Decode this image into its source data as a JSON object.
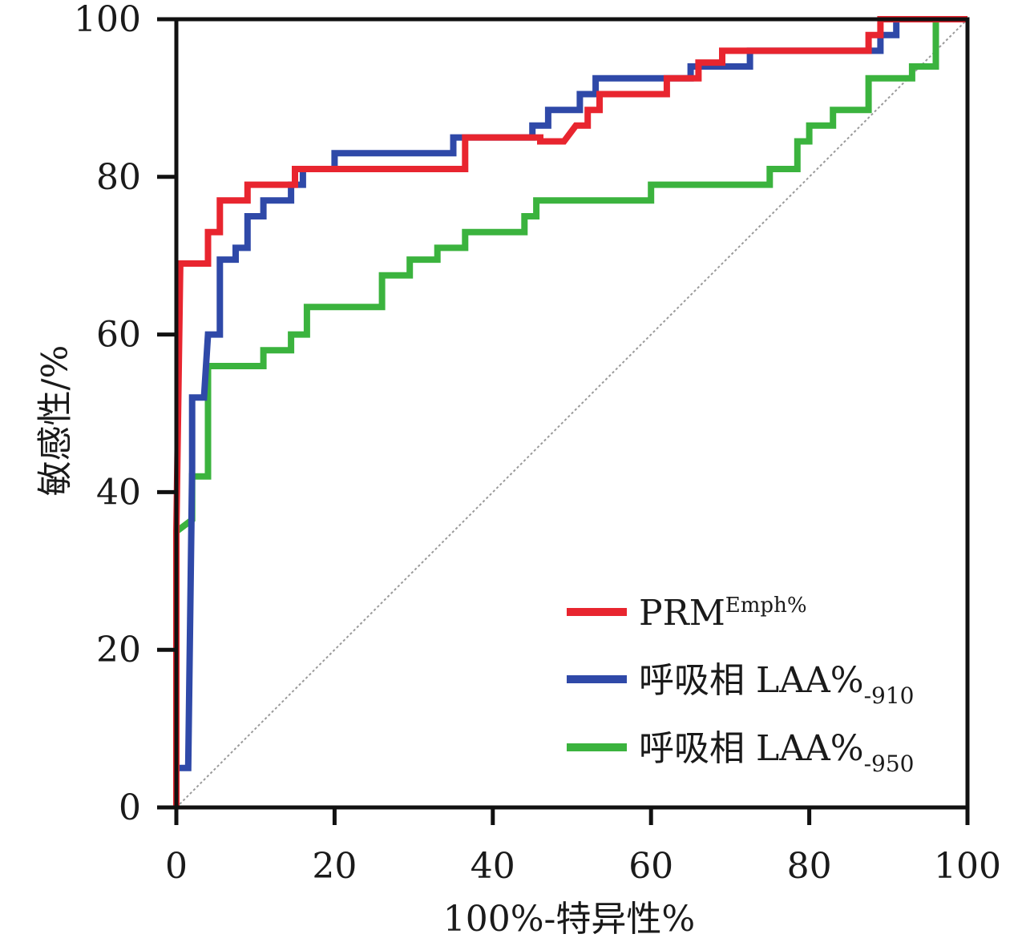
{
  "chart_data": {
    "type": "line",
    "title": "",
    "xlabel": "100%-特异性%",
    "ylabel": "敏感性/%",
    "xlim": [
      0,
      100
    ],
    "ylim": [
      0,
      100
    ],
    "xticks": [
      0,
      20,
      40,
      60,
      80,
      100
    ],
    "yticks": [
      0,
      20,
      40,
      60,
      80,
      100
    ],
    "grid": false,
    "legend_position": "bottom-right",
    "reference_line": {
      "from": [
        0,
        0
      ],
      "to": [
        100,
        100
      ],
      "style": "dotted",
      "color": "#999999"
    },
    "series": [
      {
        "name": "PRM",
        "name_superscript": "Emph%",
        "name_subscript": "",
        "color": "#e8252f",
        "points": [
          [
            0,
            0
          ],
          [
            0,
            35
          ],
          [
            0.5,
            69
          ],
          [
            4,
            69
          ],
          [
            4,
            73
          ],
          [
            5.5,
            73
          ],
          [
            5.5,
            77
          ],
          [
            9,
            77
          ],
          [
            9,
            79
          ],
          [
            15,
            79
          ],
          [
            15,
            81
          ],
          [
            20,
            81
          ],
          [
            36.5,
            81
          ],
          [
            36.5,
            85
          ],
          [
            46,
            85
          ],
          [
            46,
            84.5
          ],
          [
            49,
            84.5
          ],
          [
            50.5,
            86.5
          ],
          [
            52,
            86.5
          ],
          [
            52,
            88.5
          ],
          [
            53.5,
            88.5
          ],
          [
            53.5,
            90.5
          ],
          [
            62,
            90.5
          ],
          [
            62,
            92.5
          ],
          [
            66,
            92.5
          ],
          [
            66,
            94.5
          ],
          [
            69,
            94.5
          ],
          [
            69,
            96
          ],
          [
            72,
            96
          ],
          [
            72,
            96
          ],
          [
            87.5,
            96
          ],
          [
            87.5,
            98
          ],
          [
            89,
            98
          ],
          [
            89,
            100
          ],
          [
            100,
            100
          ]
        ]
      },
      {
        "name": "呼吸相 LAA%",
        "name_superscript": "",
        "name_subscript": "-910",
        "color": "#2f49a8",
        "points": [
          [
            0,
            0
          ],
          [
            0,
            5
          ],
          [
            1.5,
            5
          ],
          [
            2,
            43
          ],
          [
            2,
            52
          ],
          [
            3.5,
            52
          ],
          [
            4,
            60
          ],
          [
            5.5,
            60
          ],
          [
            5.5,
            69.5
          ],
          [
            7.5,
            69.5
          ],
          [
            7.5,
            71
          ],
          [
            9,
            71
          ],
          [
            9,
            75
          ],
          [
            11,
            75
          ],
          [
            11,
            77
          ],
          [
            14.5,
            77
          ],
          [
            14.5,
            79
          ],
          [
            16,
            79
          ],
          [
            16,
            81
          ],
          [
            20,
            81
          ],
          [
            20,
            83
          ],
          [
            35,
            83
          ],
          [
            35,
            85
          ],
          [
            45,
            85
          ],
          [
            45,
            86.5
          ],
          [
            47,
            86.5
          ],
          [
            47,
            88.5
          ],
          [
            51,
            88.5
          ],
          [
            51,
            90.5
          ],
          [
            53,
            90.5
          ],
          [
            53,
            92.5
          ],
          [
            65,
            92.5
          ],
          [
            65,
            94
          ],
          [
            72.5,
            94
          ],
          [
            72.5,
            96
          ],
          [
            89,
            96
          ],
          [
            89,
            98
          ],
          [
            91,
            98
          ],
          [
            91,
            100
          ],
          [
            100,
            100
          ]
        ]
      },
      {
        "name": "呼吸相 LAA%",
        "name_superscript": "",
        "name_subscript": "-950",
        "color": "#3bb33e",
        "points": [
          [
            0,
            0
          ],
          [
            0,
            35
          ],
          [
            2,
            36.5
          ],
          [
            2,
            42
          ],
          [
            4,
            42
          ],
          [
            4,
            56
          ],
          [
            11,
            56
          ],
          [
            11,
            58
          ],
          [
            14.5,
            58
          ],
          [
            14.5,
            60
          ],
          [
            16.5,
            60
          ],
          [
            16.5,
            63.5
          ],
          [
            26,
            63.5
          ],
          [
            26,
            67.5
          ],
          [
            29.5,
            67.5
          ],
          [
            29.5,
            69.5
          ],
          [
            33,
            69.5
          ],
          [
            33,
            71
          ],
          [
            36.5,
            71
          ],
          [
            36.5,
            73
          ],
          [
            44,
            73
          ],
          [
            44,
            75
          ],
          [
            45.5,
            75
          ],
          [
            45.5,
            77
          ],
          [
            60,
            77
          ],
          [
            60,
            79
          ],
          [
            75,
            79
          ],
          [
            75,
            81
          ],
          [
            78.5,
            81
          ],
          [
            78.5,
            84.5
          ],
          [
            80,
            84.5
          ],
          [
            80,
            86.5
          ],
          [
            83,
            86.5
          ],
          [
            83,
            88.5
          ],
          [
            87.5,
            88.5
          ],
          [
            87.5,
            92.5
          ],
          [
            93,
            92.5
          ],
          [
            93,
            94
          ],
          [
            96,
            94
          ],
          [
            96,
            100
          ],
          [
            100,
            100
          ]
        ]
      }
    ]
  }
}
